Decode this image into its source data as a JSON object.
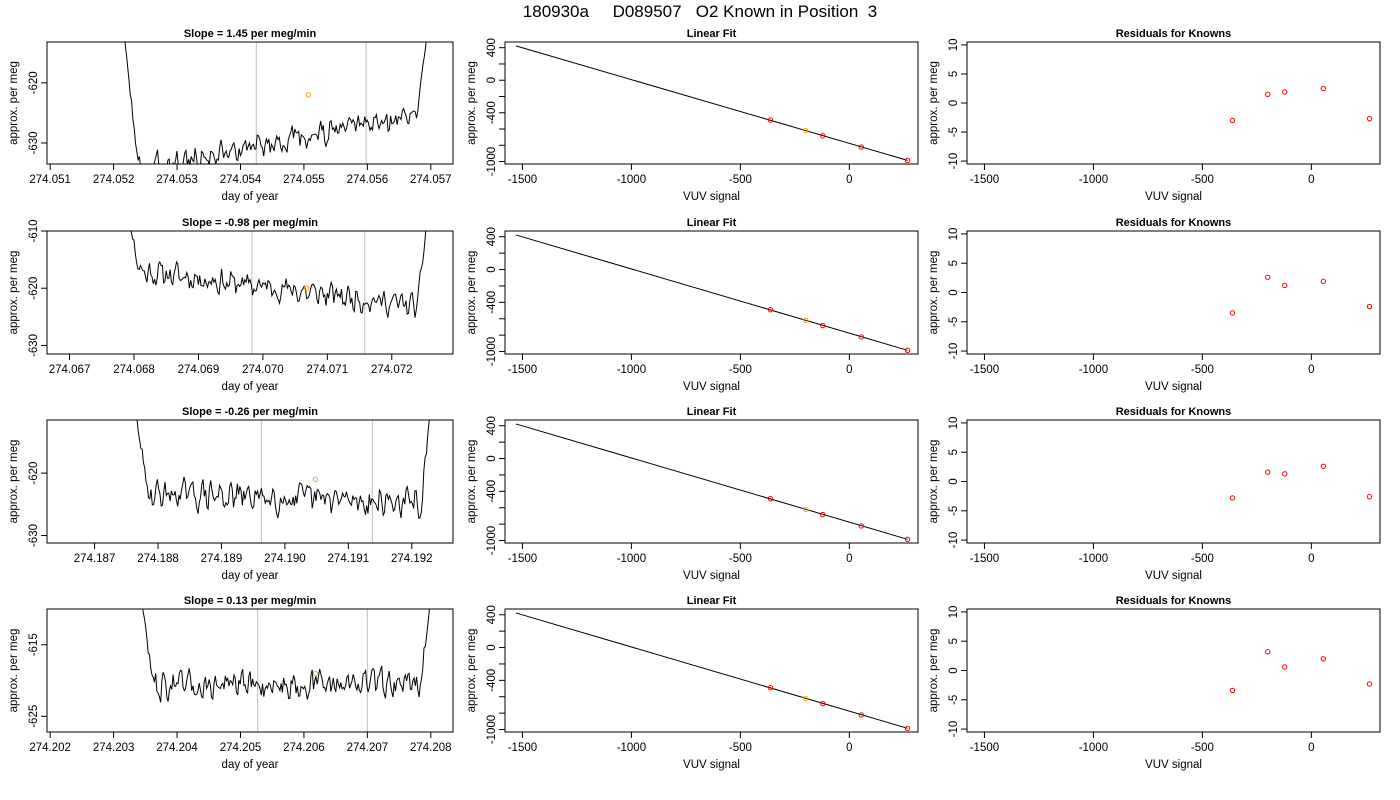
{
  "main_title": "180930a     D089507   O2 Known in Position  3",
  "colors": {
    "trace": "#000000",
    "vertical_marker": "#c8c8c8",
    "orange_marker": "#ffa500",
    "red_points": "#ff0000"
  },
  "chart_data": [
    {
      "type": "line",
      "panel": "slope-1",
      "title": "Slope =  1.45  per meg/min",
      "xlabel": "day of year",
      "ylabel": "approx. per meg",
      "xlim": [
        274.05095,
        274.05735
      ],
      "ylim": [
        -633.5,
        -613.2
      ],
      "xticks": [
        "274.051",
        "274.052",
        "274.053",
        "274.054",
        "274.055",
        "274.056",
        "274.057"
      ],
      "xtick_values": [
        274.051,
        274.052,
        274.053,
        274.054,
        274.055,
        274.056,
        274.057
      ],
      "yticks": [
        "-630",
        "-620"
      ],
      "ytick_values": [
        -630,
        -620
      ],
      "vlines": [
        274.05425,
        274.05598
      ],
      "marker": {
        "x": 274.05507,
        "y": -622.0
      },
      "trace_start": 274.0521,
      "trace_end": 274.057,
      "trace_base": -630.0,
      "trace_slope": 1.45,
      "trace_amp": 2.2,
      "seed": 3
    },
    {
      "type": "line",
      "panel": "slope-2",
      "title": "Slope =  -0.98  per meg/min",
      "xlabel": "day of year",
      "ylabel": "approx. per meg",
      "xlim": [
        274.06665,
        274.07295
      ],
      "ylim": [
        -631.5,
        -610.0
      ],
      "xticks": [
        "274.067",
        "274.068",
        "274.069",
        "274.070",
        "274.071",
        "274.072"
      ],
      "xtick_values": [
        274.067,
        274.068,
        274.069,
        274.07,
        274.071,
        274.072
      ],
      "yticks": [
        "-630",
        "-620",
        "-610"
      ],
      "ytick_values": [
        -630,
        -620,
        -610
      ],
      "vlines": [
        274.06983,
        274.07158
      ],
      "marker": {
        "x": 274.07068,
        "y": -620.0
      },
      "trace_start": 274.0678,
      "trace_end": 274.0726,
      "trace_base": -620.0,
      "trace_slope": -0.98,
      "trace_amp": 2.2,
      "seed": 11
    },
    {
      "type": "line",
      "panel": "slope-3",
      "title": "Slope =  -0.26  per meg/min",
      "xlabel": "day of year",
      "ylabel": "approx. per meg",
      "xlim": [
        274.18625,
        274.19265
      ],
      "ylim": [
        -631.2,
        -611.5
      ],
      "xticks": [
        "274.187",
        "274.188",
        "274.189",
        "274.190",
        "274.191",
        "274.192"
      ],
      "xtick_values": [
        274.187,
        274.188,
        274.189,
        274.19,
        274.191,
        274.192
      ],
      "yticks": [
        "-630",
        "-620"
      ],
      "ytick_values": [
        -630,
        -620
      ],
      "vlines": [
        274.18963,
        274.19138
      ],
      "marker": {
        "x": 274.19048,
        "y": -621.0
      },
      "trace_start": 274.18755,
      "trace_end": 274.19235,
      "trace_base": -624.0,
      "trace_slope": -0.26,
      "trace_amp": 2.4,
      "seed": 29
    },
    {
      "type": "line",
      "panel": "slope-4",
      "title": "Slope =  0.13  per meg/min",
      "xlabel": "day of year",
      "ylabel": "approx. per meg",
      "xlim": [
        274.20195,
        274.20835
      ],
      "ylim": [
        -627.2,
        -610.0
      ],
      "xticks": [
        "274.202",
        "274.203",
        "274.204",
        "274.205",
        "274.206",
        "274.207",
        "274.208"
      ],
      "xtick_values": [
        274.202,
        274.203,
        274.204,
        274.205,
        274.206,
        274.207,
        274.208
      ],
      "yticks": [
        "-625",
        "-615"
      ],
      "ytick_values": [
        -625,
        -615
      ],
      "vlines": [
        274.20527,
        274.207
      ],
      "marker": {
        "x": 274.20618,
        "y": -619.0
      },
      "trace_start": 274.20335,
      "trace_end": 274.20805,
      "trace_base": -620.5,
      "trace_slope": 0.13,
      "trace_amp": 2.0,
      "seed": 47
    },
    {
      "type": "scatter",
      "panel": "linear-fit",
      "title": "Linear Fit",
      "xlabel": "VUV signal",
      "ylabel": "approx. per meg",
      "xlim": [
        -1580,
        315
      ],
      "ylim": [
        -1030,
        470
      ],
      "xticks": [
        "-1500",
        "-1000",
        "-500",
        "0"
      ],
      "xtick_values": [
        -1500,
        -1000,
        -500,
        0
      ],
      "yticks": [
        "-1000",
        "-800",
        "-600",
        "-400",
        "-200",
        "0",
        "200",
        "400"
      ],
      "ytick_values": [
        -1000,
        -800,
        -600,
        -400,
        -200,
        0,
        200,
        400
      ],
      "ytick_labeled": [
        "-1000",
        "-400",
        "0",
        "400"
      ],
      "fit_line": {
        "x": [
          -1530,
          267
        ],
        "y": [
          422,
          -985
        ]
      },
      "points": {
        "x": [
          -362,
          -200,
          -122,
          55,
          267
        ],
        "y": [
          -490,
          -619,
          -683,
          -822,
          -985
        ]
      },
      "highlight_index": 1
    },
    {
      "type": "scatter",
      "panel": "residuals",
      "title": "Residuals for Knowns",
      "xlabel": "VUV signal",
      "ylabel": "approx. per meg",
      "xlim": [
        -1580,
        315
      ],
      "ylim": [
        -10.5,
        10.5
      ],
      "xticks": [
        "-1500",
        "-1000",
        "-500",
        "0"
      ],
      "xtick_values": [
        -1500,
        -1000,
        -500,
        0
      ],
      "yticks": [
        "-10",
        "-5",
        "0",
        "5",
        "10"
      ],
      "ytick_values": [
        -10,
        -5,
        0,
        5,
        10
      ],
      "points_x": [
        -362,
        -200,
        -122,
        55,
        267
      ],
      "rows": [
        [
          -3.0,
          1.5,
          1.9,
          2.5,
          -2.7
        ],
        [
          -3.5,
          2.6,
          1.2,
          1.9,
          -2.4
        ],
        [
          -2.8,
          1.6,
          1.3,
          2.6,
          -2.6
        ],
        [
          -3.4,
          3.2,
          0.6,
          2.0,
          -2.3
        ]
      ]
    }
  ]
}
